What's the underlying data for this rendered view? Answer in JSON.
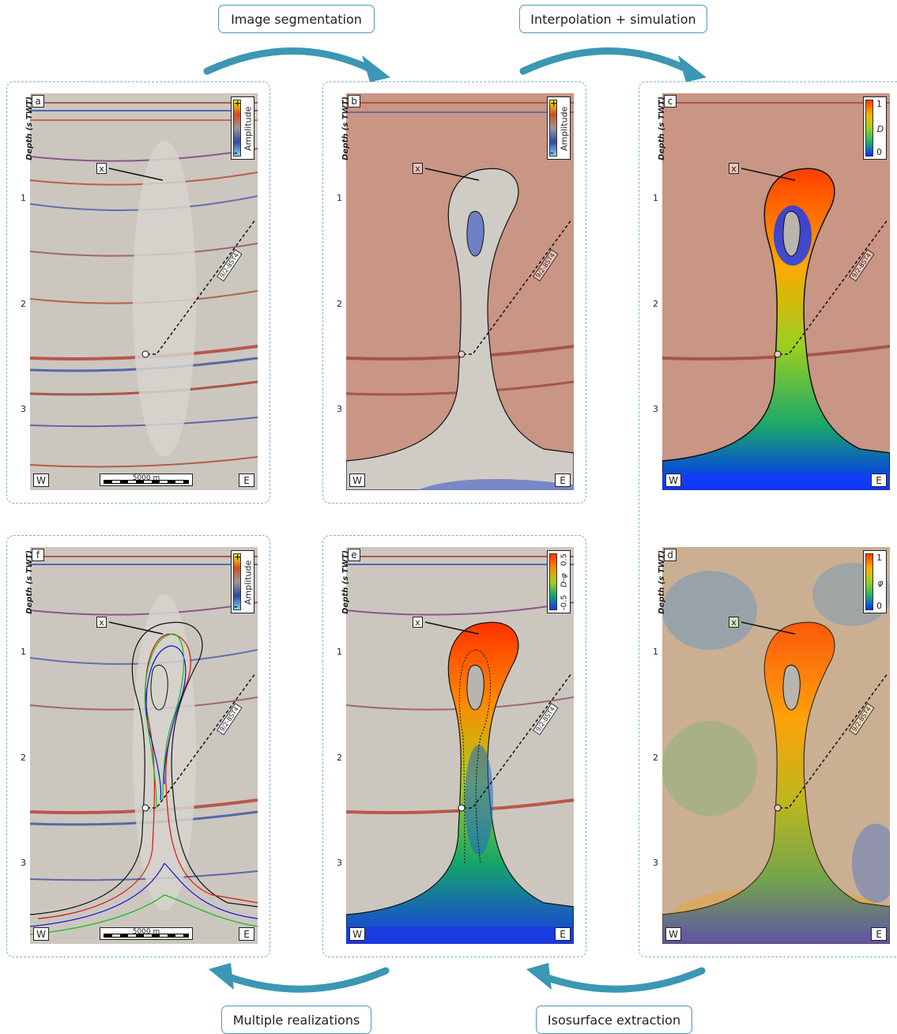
{
  "stages": {
    "segmentation": "Image segmentation",
    "interpolation": "Interpolation + simulation",
    "isosurface": "Isosurface extraction",
    "realizations": "Multiple realizations"
  },
  "axis": {
    "title": "Depth (s TWT)",
    "ticks": [
      "1",
      "2",
      "3"
    ]
  },
  "common": {
    "west": "W",
    "east": "E",
    "marker": "x",
    "well": "9/2-8ST4",
    "scale": "5000 m"
  },
  "panels": {
    "a": {
      "letter": "a",
      "colorbar": {
        "label": "Amplitude",
        "max": "+",
        "min": "-"
      }
    },
    "b": {
      "letter": "b",
      "colorbar": {
        "label": "Amplitude",
        "max": "+",
        "min": "-"
      }
    },
    "c": {
      "letter": "c",
      "colorbar": {
        "label": "D",
        "max": "1",
        "min": "0"
      }
    },
    "d": {
      "letter": "d",
      "colorbar": {
        "label": "φ",
        "max": "1",
        "min": "0"
      }
    },
    "e": {
      "letter": "e",
      "colorbar": {
        "label": "D-φ",
        "max": "0.5",
        "min": "-0.5"
      }
    },
    "f": {
      "letter": "f",
      "colorbar": {
        "label": "Amplitude",
        "max": "+",
        "min": "-"
      }
    }
  },
  "colors": {
    "accent": "#3b97b4",
    "salt_overlay": "#c96b55",
    "inclusion": "#6f7fc6"
  }
}
